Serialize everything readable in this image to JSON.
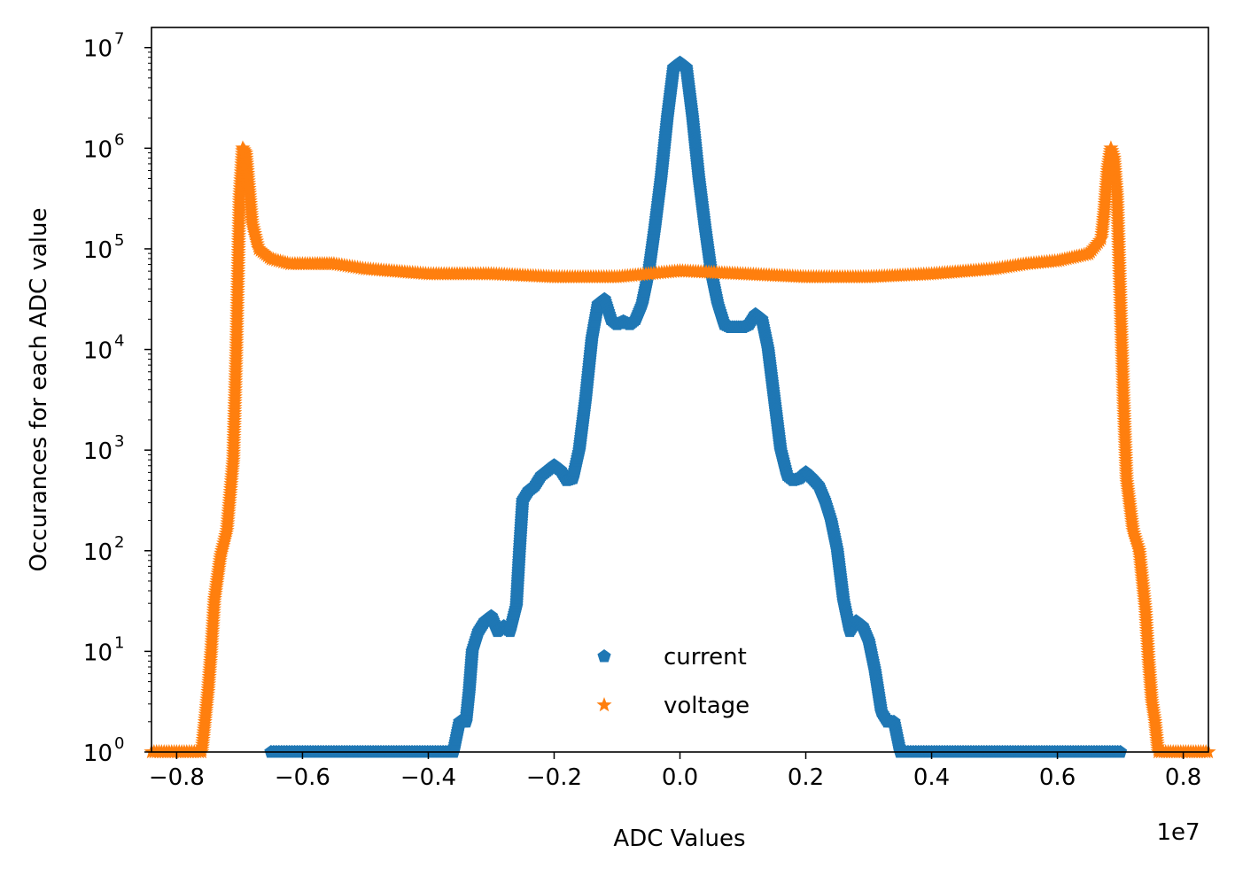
{
  "chart_data": {
    "type": "scatter",
    "title": "",
    "xlabel": "ADC Values",
    "ylabel": "Occurances for each ADC value",
    "x_offset_label": "1e7",
    "xlim": [
      -0.84,
      0.84
    ],
    "ylim_log10": [
      0,
      7.2
    ],
    "yscale": "log",
    "x_ticks": [
      -0.8,
      -0.6,
      -0.4,
      -0.2,
      0.0,
      0.2,
      0.4,
      0.6,
      0.8
    ],
    "x_tick_labels": [
      "−0.8",
      "−0.6",
      "−0.4",
      "−0.2",
      "0.0",
      "0.2",
      "0.4",
      "0.6",
      "0.8"
    ],
    "y_tick_exponents": [
      0,
      1,
      2,
      3,
      4,
      5,
      6,
      7
    ],
    "y_tick_base": "10",
    "legend_position": "lower-center",
    "series": [
      {
        "name": "current",
        "color": "#1f77b4",
        "marker": "pentagon",
        "points_x_1e7_y_log10": [
          [
            -0.65,
            0
          ],
          [
            -0.5,
            0
          ],
          [
            -0.36,
            0
          ],
          [
            -0.35,
            0.3
          ],
          [
            -0.34,
            0.3
          ],
          [
            -0.335,
            0.6
          ],
          [
            -0.33,
            1.0
          ],
          [
            -0.32,
            1.2
          ],
          [
            -0.31,
            1.3
          ],
          [
            -0.3,
            1.35
          ],
          [
            -0.29,
            1.2
          ],
          [
            -0.28,
            1.25
          ],
          [
            -0.27,
            1.2
          ],
          [
            -0.26,
            1.45
          ],
          [
            -0.255,
            2.0
          ],
          [
            -0.25,
            2.5
          ],
          [
            -0.24,
            2.6
          ],
          [
            -0.23,
            2.65
          ],
          [
            -0.22,
            2.75
          ],
          [
            -0.2,
            2.85
          ],
          [
            -0.19,
            2.8
          ],
          [
            -0.18,
            2.7
          ],
          [
            -0.17,
            2.72
          ],
          [
            -0.16,
            3.0
          ],
          [
            -0.15,
            3.5
          ],
          [
            -0.14,
            4.1
          ],
          [
            -0.13,
            4.45
          ],
          [
            -0.12,
            4.5
          ],
          [
            -0.11,
            4.3
          ],
          [
            -0.1,
            4.25
          ],
          [
            -0.09,
            4.28
          ],
          [
            -0.08,
            4.25
          ],
          [
            -0.07,
            4.3
          ],
          [
            -0.06,
            4.45
          ],
          [
            -0.05,
            4.75
          ],
          [
            -0.04,
            5.2
          ],
          [
            -0.03,
            5.7
          ],
          [
            -0.02,
            6.3
          ],
          [
            -0.01,
            6.8
          ],
          [
            0.0,
            6.85
          ],
          [
            0.01,
            6.8
          ],
          [
            0.02,
            6.3
          ],
          [
            0.03,
            5.7
          ],
          [
            0.04,
            5.2
          ],
          [
            0.05,
            4.75
          ],
          [
            0.06,
            4.45
          ],
          [
            0.07,
            4.25
          ],
          [
            0.08,
            4.22
          ],
          [
            0.09,
            4.22
          ],
          [
            0.1,
            4.22
          ],
          [
            0.11,
            4.25
          ],
          [
            0.12,
            4.35
          ],
          [
            0.13,
            4.3
          ],
          [
            0.14,
            4.0
          ],
          [
            0.15,
            3.5
          ],
          [
            0.16,
            3.0
          ],
          [
            0.17,
            2.75
          ],
          [
            0.18,
            2.7
          ],
          [
            0.19,
            2.72
          ],
          [
            0.2,
            2.78
          ],
          [
            0.21,
            2.72
          ],
          [
            0.22,
            2.65
          ],
          [
            0.23,
            2.5
          ],
          [
            0.24,
            2.3
          ],
          [
            0.25,
            2.0
          ],
          [
            0.26,
            1.5
          ],
          [
            0.27,
            1.2
          ],
          [
            0.28,
            1.3
          ],
          [
            0.29,
            1.25
          ],
          [
            0.3,
            1.1
          ],
          [
            0.31,
            0.8
          ],
          [
            0.32,
            0.4
          ],
          [
            0.33,
            0.3
          ],
          [
            0.34,
            0.3
          ],
          [
            0.35,
            0
          ],
          [
            0.5,
            0
          ],
          [
            0.7,
            0
          ]
        ]
      },
      {
        "name": "voltage",
        "color": "#ff7f0e",
        "marker": "star",
        "points_x_1e7_y_log10": [
          [
            -0.84,
            0
          ],
          [
            -0.78,
            0
          ],
          [
            -0.76,
            0
          ],
          [
            -0.755,
            0.3
          ],
          [
            -0.75,
            0.6
          ],
          [
            -0.745,
            1.0
          ],
          [
            -0.74,
            1.5
          ],
          [
            -0.73,
            1.95
          ],
          [
            -0.72,
            2.2
          ],
          [
            -0.71,
            2.9
          ],
          [
            -0.705,
            4.0
          ],
          [
            -0.7,
            5.5
          ],
          [
            -0.695,
            6.0
          ],
          [
            -0.69,
            5.95
          ],
          [
            -0.685,
            5.6
          ],
          [
            -0.68,
            5.25
          ],
          [
            -0.67,
            5.0
          ],
          [
            -0.65,
            4.9
          ],
          [
            -0.62,
            4.85
          ],
          [
            -0.58,
            4.85
          ],
          [
            -0.55,
            4.85
          ],
          [
            -0.5,
            4.8
          ],
          [
            -0.4,
            4.75
          ],
          [
            -0.3,
            4.75
          ],
          [
            -0.2,
            4.72
          ],
          [
            -0.1,
            4.72
          ],
          [
            0.0,
            4.78
          ],
          [
            0.1,
            4.75
          ],
          [
            0.2,
            4.72
          ],
          [
            0.3,
            4.72
          ],
          [
            0.4,
            4.75
          ],
          [
            0.5,
            4.8
          ],
          [
            0.55,
            4.85
          ],
          [
            0.6,
            4.88
          ],
          [
            0.65,
            4.95
          ],
          [
            0.67,
            5.1
          ],
          [
            0.675,
            5.4
          ],
          [
            0.68,
            5.8
          ],
          [
            0.685,
            6.0
          ],
          [
            0.69,
            5.9
          ],
          [
            0.695,
            5.5
          ],
          [
            0.7,
            4.5
          ],
          [
            0.705,
            3.5
          ],
          [
            0.71,
            2.7
          ],
          [
            0.72,
            2.2
          ],
          [
            0.73,
            2.0
          ],
          [
            0.74,
            1.4
          ],
          [
            0.745,
            0.9
          ],
          [
            0.75,
            0.5
          ],
          [
            0.755,
            0.3
          ],
          [
            0.76,
            0
          ],
          [
            0.78,
            0
          ],
          [
            0.84,
            0
          ]
        ]
      }
    ]
  }
}
